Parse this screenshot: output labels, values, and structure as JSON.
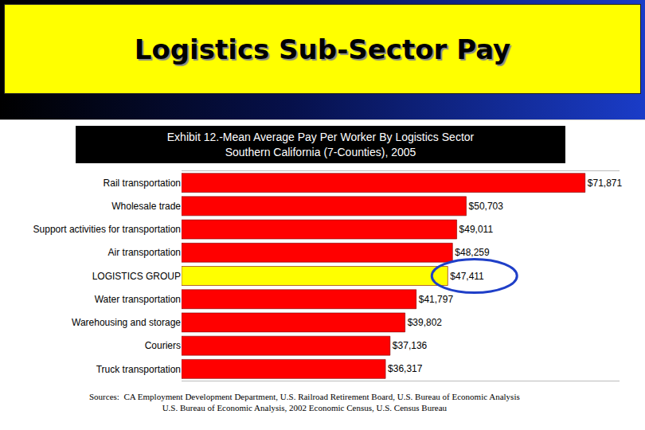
{
  "slide": {
    "title": "Logistics Sub-Sector Pay"
  },
  "chart_data": {
    "type": "bar",
    "orientation": "horizontal",
    "title": "Exhibit 12.-Mean Average Pay Per Worker By Logistics Sector",
    "subtitle": "Southern California (7-Counties), 2005",
    "categories": [
      "Rail transportation",
      "Wholesale trade",
      "Support activities for transportation",
      "Air transportation",
      "LOGISTICS GROUP",
      "Water transportation",
      "Warehousing and storage",
      "Couriers",
      "Truck transportation"
    ],
    "values": [
      71871,
      50703,
      49011,
      48259,
      47411,
      41797,
      39802,
      37136,
      36317
    ],
    "value_labels": [
      "$71,871",
      "$50,703",
      "$49,011",
      "$48,259",
      "$47,411",
      "$41,797",
      "$39,802",
      "$37,136",
      "$36,317"
    ],
    "colors": [
      "#ff0000",
      "#ff0000",
      "#ff0000",
      "#ff0000",
      "#ffff00",
      "#ff0000",
      "#ff0000",
      "#ff0000",
      "#ff0000"
    ],
    "xlim": [
      0,
      78000
    ],
    "xticks": [],
    "grid": false,
    "data_labels": true,
    "tick_labels": "y",
    "annotations": [
      "Sources:  CA Employment Development Department, U.S. Railroad Retirement Board, U.S. Bureau of Economic Analysis",
      "U.S. Bureau of Economic Analysis, 2002 Economic Census, U.S. Census Bureau"
    ]
  }
}
